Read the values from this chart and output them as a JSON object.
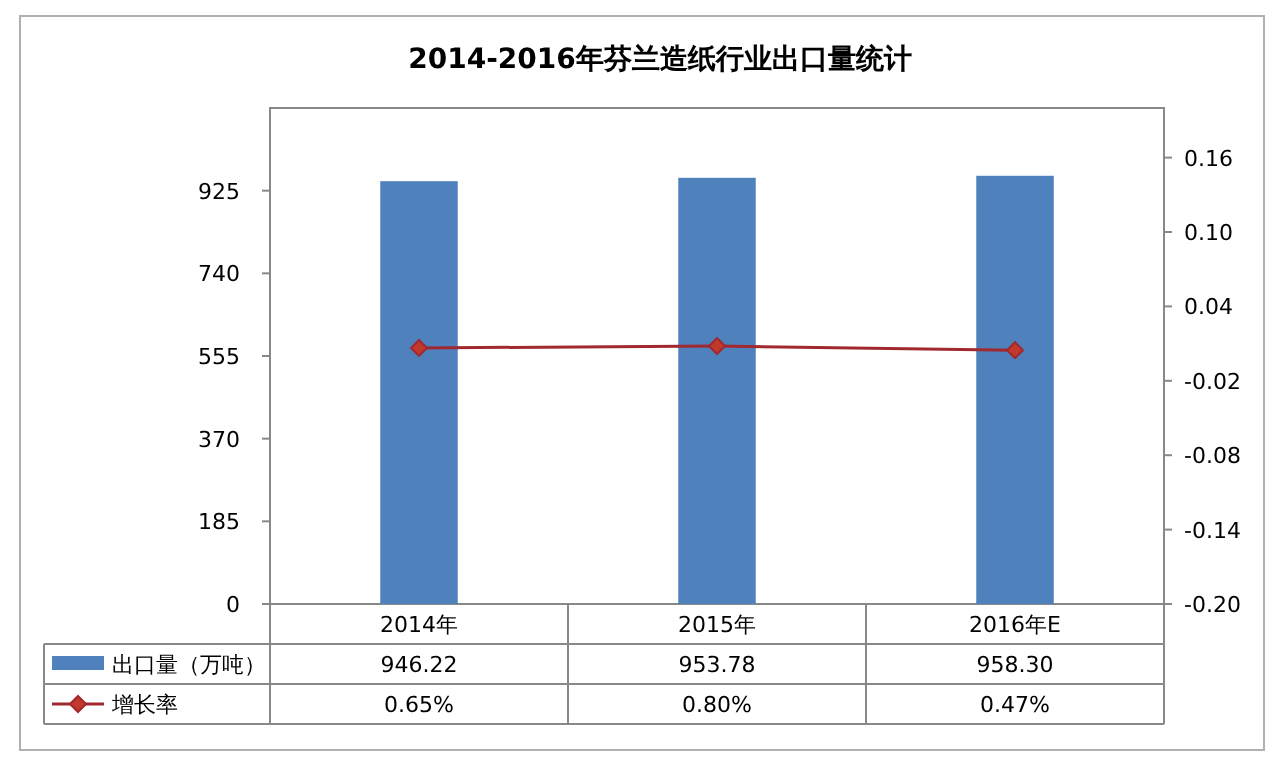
{
  "chart_data": {
    "type": "bar",
    "title": "2014-2016年芬兰造纸行业出口量统计",
    "categories": [
      "2014年",
      "2015年",
      "2016年E"
    ],
    "series": [
      {
        "name": "出口量（万吨）",
        "color": "#4f81bd",
        "values": [
          946.22,
          953.78,
          958.3
        ],
        "value_labels": [
          "946.22",
          "953.78",
          "958.30"
        ]
      },
      {
        "name": "增长率",
        "type": "line",
        "axis": "y2",
        "color": "#a0282e",
        "marker": "diamond",
        "values": [
          0.0065,
          0.008,
          0.0047
        ],
        "value_labels": [
          "0.65%",
          "0.80%",
          "0.47%"
        ]
      }
    ],
    "ylim": [
      0,
      1110
    ],
    "yticks": [
      0,
      185,
      370,
      555,
      740,
      925
    ],
    "y2lim": [
      -0.2,
      0.2
    ],
    "y2ticks": [
      {
        "value": -0.2,
        "label": "-0.20"
      },
      -0.14,
      -0.08,
      -0.02,
      0.04,
      {
        "value": 0.1,
        "label": "0.10"
      },
      0.16
    ],
    "legend": "bottom left"
  }
}
